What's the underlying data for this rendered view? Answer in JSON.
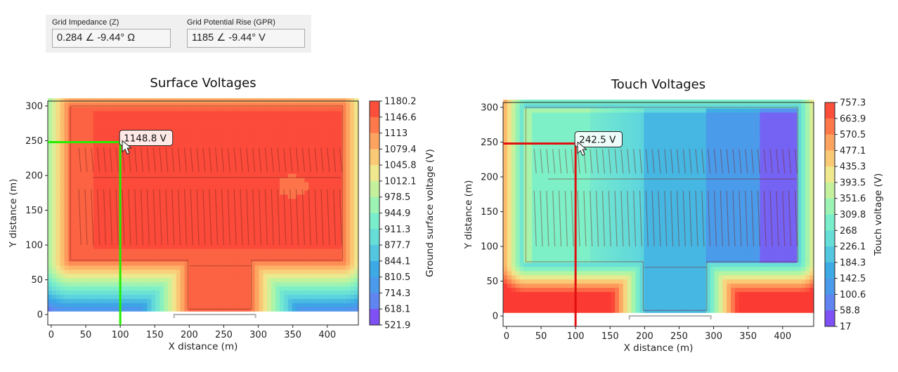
{
  "info_panel": {
    "impedance": {
      "label": "Grid Impedance (Z)",
      "value": "0.284 ∠ -9.44° Ω"
    },
    "gpr": {
      "label": "Grid Potential Rise (GPR)",
      "value": "1185 ∠ -9.44° V"
    }
  },
  "colors": {
    "low": "#8e36f5",
    "mid": "#7ef0c8",
    "high": "#fb3a33",
    "surface_crosshair": "#22ee00",
    "touch_crosshair": "#e01010"
  },
  "chart_data": [
    {
      "type": "heatmap",
      "title": "Surface Voltages",
      "xlabel": "X distance (m)",
      "ylabel": "Y distance (m)",
      "colorbar_label": "Ground surface voltage (V)",
      "colorbar_ticks": [
        "1180.2",
        "1146.6",
        "1113",
        "1079.4",
        "1045.8",
        "1012.1",
        "978.5",
        "944.9",
        "911.3",
        "877.7",
        "844.1",
        "810.5",
        "714.3",
        "618.1",
        "521.9"
      ],
      "xlim": [
        -5,
        445
      ],
      "ylim": [
        -15,
        307
      ],
      "xticks": [
        0,
        50,
        100,
        150,
        200,
        250,
        300,
        350,
        400
      ],
      "yticks": [
        0,
        50,
        100,
        150,
        200,
        250,
        300
      ],
      "cursor": {
        "x": 100,
        "y": 248,
        "readout": "1148.8 V"
      }
    },
    {
      "type": "heatmap",
      "title": "Touch Voltages",
      "xlabel": "X distance (m)",
      "ylabel": "Y distance (m)",
      "colorbar_label": "Touch voltage (V)",
      "colorbar_ticks": [
        "757.3",
        "663.9",
        "570.5",
        "477.1",
        "435.3",
        "393.5",
        "351.6",
        "309.8",
        "268",
        "226.1",
        "184.3",
        "142.5",
        "100.6",
        "58.8",
        "17"
      ],
      "xlim": [
        -5,
        445
      ],
      "ylim": [
        -15,
        307
      ],
      "xticks": [
        0,
        50,
        100,
        150,
        200,
        250,
        300,
        350,
        400
      ],
      "yticks": [
        0,
        50,
        100,
        150,
        200,
        250,
        300
      ],
      "cursor": {
        "x": 100,
        "y": 248,
        "readout": "242.5 V"
      }
    }
  ]
}
